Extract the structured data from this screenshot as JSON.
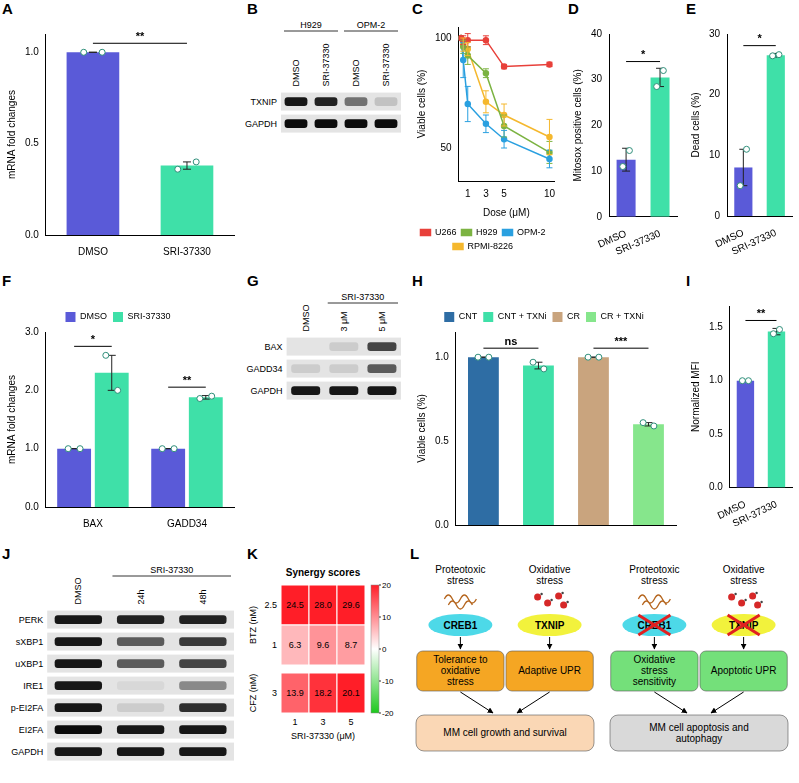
{
  "chart_data": [
    {
      "panel": "A",
      "type": "bar",
      "categories": [
        "DMSO",
        "SRI-37330"
      ],
      "values": [
        1.0,
        0.38
      ],
      "errors": [
        0.0,
        0.02
      ],
      "points": [
        [
          1.0,
          1.0
        ],
        [
          0.36,
          0.4
        ]
      ],
      "colors": [
        "#5a5ad8",
        "#3fe0a8"
      ],
      "y_label": "mRNA fold changes",
      "ylim": [
        0,
        1.1
      ],
      "yticks": [
        {
          "value": 0,
          "label": "0.0"
        },
        {
          "value": 0.5,
          "label": "0.5"
        },
        {
          "value": 1,
          "label": "1.0"
        }
      ],
      "grid": false,
      "annotations": [
        {
          "text": "**",
          "from": "DMSO",
          "to": "SRI-37330"
        }
      ]
    },
    {
      "panel": "C",
      "type": "line",
      "x": [
        0.25,
        0.5,
        1,
        3,
        5,
        10
      ],
      "x_label": "Dose (μM)",
      "y_label": "Viable cells (%)",
      "xlim": [
        0,
        10.5
      ],
      "xticks": [
        1,
        3,
        5,
        10
      ],
      "ylim": [
        35,
        105
      ],
      "yticks": [
        50,
        100
      ],
      "grid": false,
      "legend": "bottom",
      "marker": "circle",
      "series": [
        {
          "name": "U266",
          "color": "#e8403a",
          "values": [
            100,
            99,
            99,
            99,
            87,
            88
          ],
          "errors": [
            0,
            2,
            3,
            2,
            1,
            1
          ]
        },
        {
          "name": "H929",
          "color": "#7cb342",
          "values": [
            100,
            96,
            92,
            84,
            60,
            48
          ],
          "errors": [
            0,
            3,
            4,
            2,
            5,
            5
          ]
        },
        {
          "name": "OPM-2",
          "color": "#2aa0e0",
          "values": [
            100,
            90,
            70,
            61,
            54,
            45
          ],
          "errors": [
            0,
            8,
            8,
            4,
            4,
            4
          ]
        },
        {
          "name": "RPMI-8226",
          "color": "#f5b82e",
          "values": [
            100,
            97,
            95,
            71,
            65,
            55
          ],
          "errors": [
            0,
            3,
            3,
            5,
            5,
            8
          ]
        }
      ]
    },
    {
      "panel": "D",
      "type": "bar",
      "categories": [
        "DMSO",
        "SRI-37330"
      ],
      "values": [
        12.5,
        30.5
      ],
      "errors": [
        2.5,
        2.0
      ],
      "points": [
        [
          11,
          14.5
        ],
        [
          28.5,
          32
        ]
      ],
      "colors": [
        "#5a5ad8",
        "#3fe0a8"
      ],
      "y_label": "Mitosox positive cells (%)",
      "ylim": [
        0,
        40
      ],
      "yticks": [
        0,
        10,
        20,
        30,
        40
      ],
      "grid": false,
      "annotations": [
        {
          "text": "*",
          "from": "DMSO",
          "to": "SRI-37330"
        }
      ]
    },
    {
      "panel": "E",
      "type": "bar",
      "categories": [
        "DMSO",
        "SRI-37330"
      ],
      "values": [
        8,
        26.5
      ],
      "errors": [
        3,
        0.3
      ],
      "points": [
        [
          5,
          11
        ],
        [
          26.4,
          26.6
        ]
      ],
      "colors": [
        "#5a5ad8",
        "#3fe0a8"
      ],
      "y_label": "Dead cells (%)",
      "ylim": [
        0,
        30
      ],
      "yticks": [
        0,
        10,
        20,
        30
      ],
      "grid": false,
      "annotations": [
        {
          "text": "*",
          "from": "DMSO",
          "to": "SRI-37330"
        }
      ]
    },
    {
      "panel": "F",
      "type": "bar",
      "categories": [
        "BAX",
        "GADD34"
      ],
      "y_label": "mRNA fold changes",
      "legend": "top",
      "series": [
        {
          "name": "DMSO",
          "color": "#5a5ad8",
          "values": [
            1.0,
            1.0
          ],
          "errors": [
            0,
            0
          ],
          "points": [
            [
              1,
              1
            ],
            [
              1,
              1
            ]
          ]
        },
        {
          "name": "SRI-37330",
          "color": "#3fe0a8",
          "values": [
            2.3,
            1.88
          ],
          "errors": [
            0.3,
            0.03
          ],
          "points": [
            [
              2.6,
              2.0
            ],
            [
              1.86,
              1.9
            ]
          ]
        }
      ],
      "ylim": [
        0,
        3
      ],
      "yticks": [
        {
          "value": 0,
          "label": "0.0"
        },
        {
          "value": 1,
          "label": "1.0"
        },
        {
          "value": 2,
          "label": "2.0"
        },
        {
          "value": 3,
          "label": "3.0"
        }
      ],
      "grid": false,
      "annotations": [
        {
          "text": "*",
          "category": "BAX"
        },
        {
          "text": "**",
          "category": "GADD34"
        }
      ]
    },
    {
      "panel": "H",
      "type": "bar",
      "categories": [
        "CNT",
        "CNT + TXNi",
        "CR",
        "CR + TXNi"
      ],
      "values": [
        1.0,
        0.95,
        1.0,
        0.6
      ],
      "errors": [
        0,
        0.02,
        0,
        0.01
      ],
      "points": [
        [
          1,
          1
        ],
        [
          0.97,
          0.93
        ],
        [
          1,
          1
        ],
        [
          0.61,
          0.59
        ]
      ],
      "colors": [
        "#2e6da4",
        "#3fe0a8",
        "#c9a47e",
        "#86e68c"
      ],
      "legend": "top",
      "tick_labels": "y",
      "y_label": "Viable cells (%)",
      "ylim": [
        0,
        1.15
      ],
      "yticks": [
        {
          "value": 0,
          "label": "0.0"
        },
        {
          "value": 0.5,
          "label": "0.5"
        },
        {
          "value": 1,
          "label": "1.0"
        }
      ],
      "grid": false,
      "annotations": [
        {
          "text": "ns",
          "from": "CNT",
          "to": "CNT + TXNi"
        },
        {
          "text": "***",
          "from": "CR",
          "to": "CR + TXNi"
        }
      ]
    },
    {
      "panel": "I",
      "type": "bar",
      "categories": [
        "DMSO",
        "SRI-37330"
      ],
      "values": [
        1.0,
        1.46
      ],
      "errors": [
        0,
        0.03
      ],
      "points": [
        [
          1,
          1
        ],
        [
          1.44,
          1.48
        ]
      ],
      "colors": [
        "#5a5ad8",
        "#3fe0a8"
      ],
      "y_label": "Normalized MFI",
      "ylim": [
        0,
        1.7
      ],
      "yticks": [
        {
          "value": 0,
          "label": "0.0"
        },
        {
          "value": 0.5,
          "label": "0.5"
        },
        {
          "value": 1,
          "label": "1.0"
        },
        {
          "value": 1.5,
          "label": "1.5"
        }
      ],
      "grid": false,
      "annotations": [
        {
          "text": "**",
          "from": "DMSO",
          "to": "SRI-37330"
        }
      ]
    },
    {
      "panel": "K",
      "type": "heatmap",
      "title": "Synergy scores",
      "x_label": "SRI-37330 (μM)",
      "categories": [
        1,
        3,
        5
      ],
      "row_groups": [
        {
          "label": "BTZ (nM)",
          "rows": [
            2.5,
            1
          ]
        },
        {
          "label": "CFZ (nM)",
          "rows": [
            3
          ]
        }
      ],
      "values": [
        [
          24.5,
          28.0,
          29.6
        ],
        [
          6.3,
          9.6,
          8.7
        ],
        [
          13.9,
          18.2,
          20.1
        ]
      ],
      "value_labels": [
        [
          "24.5",
          "28.0",
          "29.6"
        ],
        [
          "6.3",
          "9.6",
          "8.7"
        ],
        [
          "13.9",
          "18.2",
          "20.1"
        ]
      ],
      "colorbar": {
        "range": [
          -20,
          20
        ],
        "ticks": [
          -20,
          -10,
          0,
          10,
          20
        ]
      }
    }
  ],
  "blots": [
    {
      "panel": "B",
      "groups": [
        {
          "label": "H929",
          "lanes": [
            "DMSO",
            "SRI-37330"
          ]
        },
        {
          "label": "OPM-2",
          "lanes": [
            "DMSO",
            "SRI-37330"
          ]
        }
      ],
      "rows": [
        {
          "label": "TXNIP",
          "bands": [
            0.9,
            0.85,
            0.5,
            0.15
          ]
        },
        {
          "label": "GAPDH",
          "bands": [
            0.95,
            0.95,
            0.95,
            0.95
          ]
        }
      ]
    },
    {
      "panel": "G",
      "groups": [
        {
          "lanes": [
            "DMSO"
          ]
        },
        {
          "label": "SRI-37330",
          "lanes": [
            "3 μM",
            "5 μM"
          ]
        }
      ],
      "rows": [
        {
          "label": "BAX",
          "bands": [
            0.0,
            0.1,
            0.7
          ]
        },
        {
          "label": "GADD34",
          "bands": [
            0.1,
            0.1,
            0.6
          ]
        },
        {
          "label": "GAPDH",
          "bands": [
            0.9,
            0.9,
            0.9
          ]
        }
      ]
    },
    {
      "panel": "J",
      "groups": [
        {
          "lanes": [
            "DMSO"
          ]
        },
        {
          "label": "SRI-37330",
          "lanes": [
            "24h",
            "48h"
          ]
        }
      ],
      "rows": [
        {
          "label": "PERK",
          "bands": [
            0.9,
            0.85,
            0.85
          ]
        },
        {
          "label": "sXBP1",
          "bands": [
            0.9,
            0.6,
            0.75
          ]
        },
        {
          "label": "uXBP1",
          "bands": [
            0.9,
            0.6,
            0.7
          ]
        },
        {
          "label": "IRE1",
          "bands": [
            0.9,
            0.05,
            0.4
          ]
        },
        {
          "label": "p-EI2FA",
          "bands": [
            0.9,
            0.1,
            0.8
          ]
        },
        {
          "label": "EI2FA",
          "bands": [
            0.95,
            0.9,
            0.9
          ]
        },
        {
          "label": "GAPDH",
          "bands": [
            0.9,
            0.9,
            0.9
          ]
        }
      ]
    }
  ],
  "diagram": {
    "panel": "L",
    "columns": [
      {
        "stresses": [
          "Proteotoxic stress",
          "Oxidative stress"
        ],
        "factors": [
          "CREB1",
          "TXNIP"
        ],
        "blocked": false,
        "outcomes": [
          "Tolerance to oxidative stress",
          "Adaptive UPR"
        ],
        "result": "MM cell growth and survival"
      },
      {
        "stresses": [
          "Proteotoxic stress",
          "Oxidative stress"
        ],
        "factors": [
          "CREB1",
          "TXNIP"
        ],
        "blocked": true,
        "outcomes": [
          "Oxidative stress sensitivity",
          "Apoptotic UPR"
        ],
        "result": "MM cell apoptosis and autophagy"
      }
    ]
  }
}
